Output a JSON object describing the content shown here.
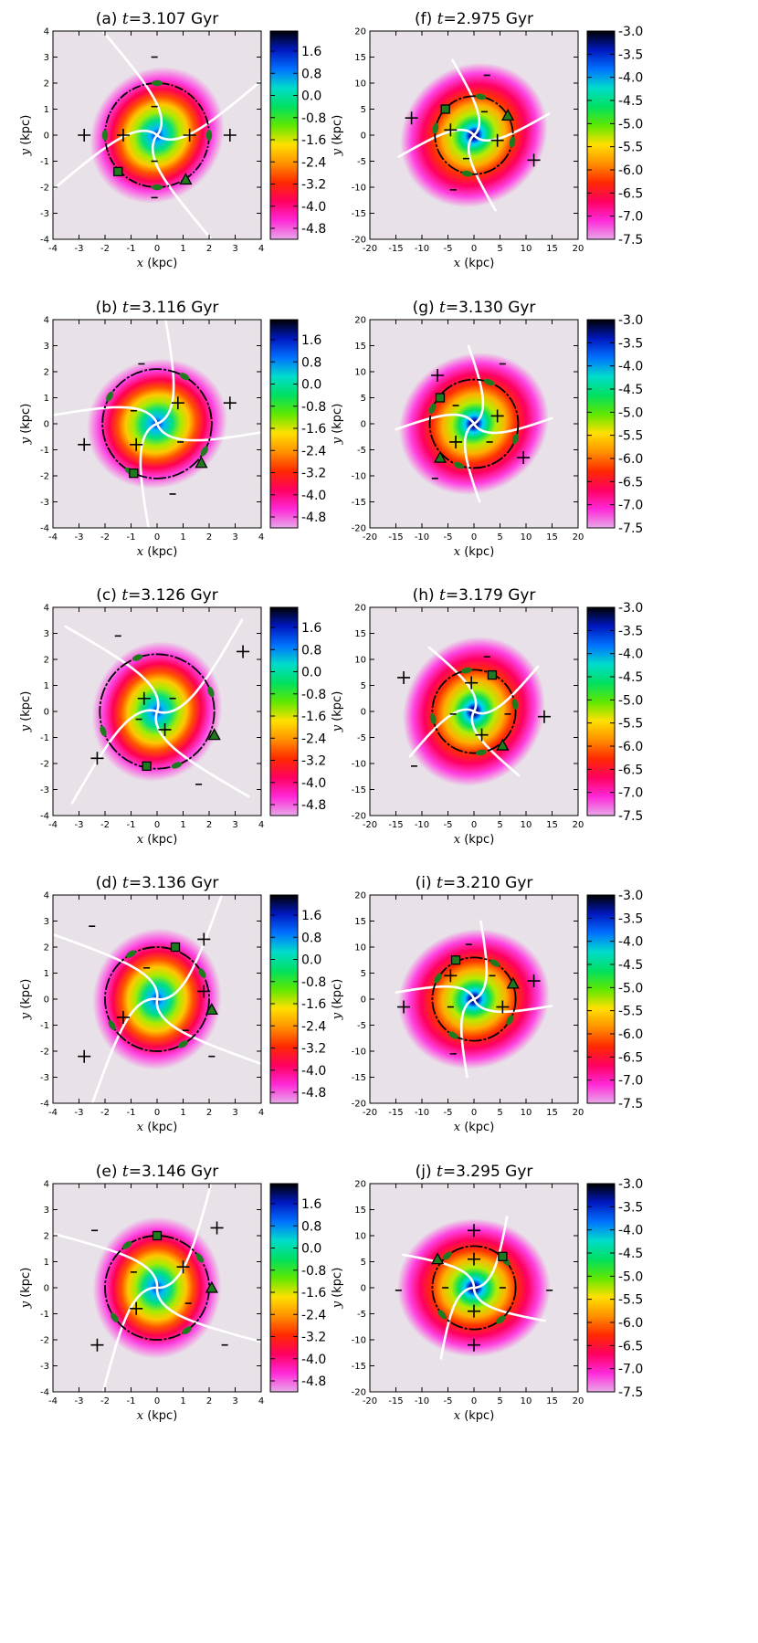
{
  "figure": {
    "xlabel_kpc": "x (kpc)",
    "ylabel_kpc": "y (kpc)",
    "title_suffix": " Gyr",
    "colors": {
      "map_outside": "#c4c4c4",
      "marker_green": "#1f7a1f",
      "marker_black": "#000000",
      "ridge_white": "#ffffff"
    },
    "colormap_stops": [
      "#000000",
      "#0018c0",
      "#0070ff",
      "#00dccc",
      "#00e060",
      "#60e800",
      "#ffe000",
      "#ff9000",
      "#ff2a00",
      "#ff0060",
      "#ff28d8",
      "#e8a8e8"
    ]
  },
  "chart_data": [
    {
      "type": "heatmap",
      "panel": "a",
      "label": "(a)",
      "time": "3.107",
      "xlim": [
        -4,
        4
      ],
      "ylim": [
        -4,
        4
      ],
      "xticks": [
        "-4",
        "-3",
        "-2",
        "-1",
        "0",
        "1",
        "2",
        "3",
        "4"
      ],
      "yticks": [
        "-4",
        "-3",
        "-2",
        "-1",
        "0",
        "1",
        "2",
        "3",
        "4"
      ],
      "cbar_ticks": [
        "1.6",
        "0.8",
        "0.0",
        "-0.8",
        "-1.6",
        "-2.4",
        "-3.2",
        "-4.0",
        "-4.8"
      ],
      "circle_r": 2.0,
      "rot": 50,
      "ridge_ext": 4.8,
      "plus": [
        [
          -2.8,
          0
        ],
        [
          -1.3,
          0
        ],
        [
          1.25,
          0
        ],
        [
          2.8,
          0
        ]
      ],
      "minus": [
        [
          -0.1,
          3.0
        ],
        [
          -0.1,
          1.1
        ],
        [
          -0.1,
          -1.0
        ],
        [
          -0.1,
          -2.4
        ]
      ],
      "square": [
        [
          -1.5,
          -1.4
        ]
      ],
      "triangle": [
        [
          1.1,
          -1.7
        ]
      ]
    },
    {
      "type": "heatmap",
      "panel": "b",
      "label": "(b)",
      "time": "3.116",
      "xlim": [
        -4,
        4
      ],
      "ylim": [
        -4,
        4
      ],
      "xticks": [
        "-4",
        "-3",
        "-2",
        "-1",
        "0",
        "1",
        "2",
        "3",
        "4"
      ],
      "yticks": [
        "-4",
        "-3",
        "-2",
        "-1",
        "0",
        "1",
        "2",
        "3",
        "4"
      ],
      "cbar_ticks": [
        "1.6",
        "0.8",
        "0.0",
        "-0.8",
        "-1.6",
        "-2.4",
        "-3.2",
        "-4.0",
        "-4.8"
      ],
      "circle_r": 2.1,
      "rot": 20,
      "ridge_ext": 4.8,
      "plus": [
        [
          -2.8,
          -0.8
        ],
        [
          -0.8,
          -0.8
        ],
        [
          0.8,
          0.8
        ],
        [
          2.8,
          0.8
        ]
      ],
      "minus": [
        [
          -0.9,
          0.5
        ],
        [
          0.9,
          -0.7
        ],
        [
          -0.6,
          2.3
        ],
        [
          0.6,
          -2.7
        ]
      ],
      "square": [
        [
          -0.9,
          -1.9
        ]
      ],
      "triangle": [
        [
          1.7,
          -1.5
        ]
      ]
    },
    {
      "type": "heatmap",
      "panel": "c",
      "label": "(c)",
      "time": "3.126",
      "xlim": [
        -4,
        4
      ],
      "ylim": [
        -4,
        4
      ],
      "xticks": [
        "-4",
        "-3",
        "-2",
        "-1",
        "0",
        "1",
        "2",
        "3",
        "4"
      ],
      "yticks": [
        "-4",
        "-3",
        "-2",
        "-1",
        "0",
        "1",
        "2",
        "3",
        "4"
      ],
      "cbar_ticks": [
        "1.6",
        "0.8",
        "0.0",
        "-0.8",
        "-1.6",
        "-2.4",
        "-3.2",
        "-4.0",
        "-4.8"
      ],
      "circle_r": 2.2,
      "rot": 70,
      "ridge_ext": 4.8,
      "plus": [
        [
          -2.3,
          -1.8
        ],
        [
          -0.5,
          0.5
        ],
        [
          0.3,
          -0.7
        ],
        [
          3.3,
          2.3
        ]
      ],
      "minus": [
        [
          -1.5,
          2.9
        ],
        [
          -0.7,
          -0.3
        ],
        [
          0.6,
          0.5
        ],
        [
          1.6,
          -2.8
        ]
      ],
      "square": [
        [
          -0.4,
          -2.1
        ]
      ],
      "triangle": [
        [
          2.2,
          -0.9
        ]
      ]
    },
    {
      "type": "heatmap",
      "panel": "d",
      "label": "(d)",
      "time": "3.136",
      "xlim": [
        -4,
        4
      ],
      "ylim": [
        -4,
        4
      ],
      "xticks": [
        "-4",
        "-3",
        "-2",
        "-1",
        "0",
        "1",
        "2",
        "3",
        "4"
      ],
      "yticks": [
        "-4",
        "-3",
        "-2",
        "-1",
        "0",
        "1",
        "2",
        "3",
        "4"
      ],
      "cbar_ticks": [
        "1.6",
        "0.8",
        "0.0",
        "-0.8",
        "-1.6",
        "-2.4",
        "-3.2",
        "-4.0",
        "-4.8"
      ],
      "circle_r": 2.0,
      "rot": 80,
      "ridge_ext": 4.8,
      "plus": [
        [
          -2.8,
          -2.2
        ],
        [
          -1.3,
          -0.7
        ],
        [
          1.8,
          0.3
        ],
        [
          1.8,
          2.3
        ]
      ],
      "minus": [
        [
          -2.5,
          2.8
        ],
        [
          -0.4,
          1.2
        ],
        [
          1.1,
          -1.2
        ],
        [
          2.1,
          -2.2
        ]
      ],
      "square": [
        [
          0.7,
          2.0
        ]
      ],
      "triangle": [
        [
          2.1,
          -0.4
        ]
      ]
    },
    {
      "type": "heatmap",
      "panel": "e",
      "label": "(e)",
      "time": "3.146",
      "xlim": [
        -4,
        4
      ],
      "ylim": [
        -4,
        4
      ],
      "xticks": [
        "-4",
        "-3",
        "-2",
        "-1",
        "0",
        "1",
        "2",
        "3",
        "4"
      ],
      "yticks": [
        "-4",
        "-3",
        "-2",
        "-1",
        "0",
        "1",
        "2",
        "3",
        "4"
      ],
      "cbar_ticks": [
        "1.6",
        "0.8",
        "0.0",
        "-0.8",
        "-1.6",
        "-2.4",
        "-3.2",
        "-4.0",
        "-4.8"
      ],
      "circle_r": 2.0,
      "rot": 85,
      "ridge_ext": 4.8,
      "plus": [
        [
          -2.3,
          -2.2
        ],
        [
          -0.8,
          -0.8
        ],
        [
          1.0,
          0.8
        ],
        [
          2.3,
          2.3
        ]
      ],
      "minus": [
        [
          -2.4,
          2.2
        ],
        [
          -0.9,
          0.6
        ],
        [
          1.2,
          -0.6
        ],
        [
          2.6,
          -2.2
        ]
      ],
      "square": [
        [
          0.0,
          2.0
        ]
      ],
      "triangle": [
        [
          2.1,
          0.0
        ]
      ]
    },
    {
      "type": "heatmap",
      "panel": "f",
      "label": "(f)",
      "time": "2.975",
      "xlim": [
        -20,
        20
      ],
      "ylim": [
        -20,
        20
      ],
      "xticks": [
        "-20",
        "-15",
        "-10",
        "-5",
        "0",
        "5",
        "10",
        "15",
        "20"
      ],
      "yticks": [
        "-20",
        "-15",
        "-10",
        "-5",
        "0",
        "5",
        "10",
        "15",
        "20"
      ],
      "cbar_ticks": [
        "-3.0",
        "-3.5",
        "-4.0",
        "-4.5",
        "-5.0",
        "-5.5",
        "-6.0",
        "-6.5",
        "-7.0",
        "-7.5"
      ],
      "circle_r": 7.5,
      "rot": 40,
      "ridge_ext": 15,
      "plus": [
        [
          -12,
          3.3
        ],
        [
          -4.5,
          1.0
        ],
        [
          4.5,
          -1.0
        ],
        [
          11.5,
          -4.8
        ]
      ],
      "minus": [
        [
          2.5,
          11.5
        ],
        [
          -1.5,
          -4.5
        ],
        [
          2.0,
          4.5
        ],
        [
          -4.0,
          -10.5
        ]
      ],
      "square": [
        [
          -5.5,
          5.0
        ]
      ],
      "triangle": [
        [
          6.5,
          3.8
        ]
      ]
    },
    {
      "type": "heatmap",
      "panel": "g",
      "label": "(g)",
      "time": "3.130",
      "xlim": [
        -20,
        20
      ],
      "ylim": [
        -20,
        20
      ],
      "xticks": [
        "-20",
        "-15",
        "-10",
        "-5",
        "0",
        "5",
        "10",
        "15",
        "20"
      ],
      "yticks": [
        "-20",
        "-15",
        "-10",
        "-5",
        "0",
        "5",
        "10",
        "15",
        "20"
      ],
      "cbar_ticks": [
        "-3.0",
        "-3.5",
        "-4.0",
        "-4.5",
        "-5.0",
        "-5.5",
        "-6.0",
        "-6.5",
        "-7.0",
        "-7.5"
      ],
      "circle_r": 8.5,
      "rot": 30,
      "ridge_ext": 15,
      "plus": [
        [
          -7.0,
          9.3
        ],
        [
          -3.5,
          -3.5
        ],
        [
          4.5,
          1.5
        ],
        [
          9.5,
          -6.5
        ]
      ],
      "minus": [
        [
          -3.5,
          3.5
        ],
        [
          3.0,
          -3.5
        ],
        [
          5.5,
          11.5
        ],
        [
          -7.5,
          -10.5
        ]
      ],
      "square": [
        [
          -6.5,
          5.0
        ]
      ],
      "triangle": [
        [
          -6.5,
          -6.5
        ]
      ]
    },
    {
      "type": "heatmap",
      "panel": "h",
      "label": "(h)",
      "time": "3.179",
      "xlim": [
        -20,
        20
      ],
      "ylim": [
        -20,
        20
      ],
      "xticks": [
        "-20",
        "-15",
        "-10",
        "-5",
        "0",
        "5",
        "10",
        "15",
        "20"
      ],
      "yticks": [
        "-20",
        "-15",
        "-10",
        "-5",
        "0",
        "5",
        "10",
        "15",
        "20"
      ],
      "cbar_ticks": [
        "-3.0",
        "-3.5",
        "-4.0",
        "-4.5",
        "-5.0",
        "-5.5",
        "-6.0",
        "-6.5",
        "-7.0",
        "-7.5"
      ],
      "circle_r": 8.0,
      "rot": 60,
      "ridge_ext": 15,
      "plus": [
        [
          -13.5,
          6.5
        ],
        [
          -0.5,
          5.5
        ],
        [
          1.5,
          -4.5
        ],
        [
          13.5,
          -1.0
        ]
      ],
      "minus": [
        [
          -4.0,
          -0.5
        ],
        [
          6.5,
          -0.5
        ],
        [
          2.5,
          10.5
        ],
        [
          -11.5,
          -10.5
        ]
      ],
      "square": [
        [
          3.5,
          7.0
        ]
      ],
      "triangle": [
        [
          5.5,
          -6.5
        ]
      ]
    },
    {
      "type": "heatmap",
      "panel": "i",
      "label": "(i)",
      "time": "3.210",
      "xlim": [
        -20,
        20
      ],
      "ylim": [
        -20,
        20
      ],
      "xticks": [
        "-20",
        "-15",
        "-10",
        "-5",
        "0",
        "5",
        "10",
        "15",
        "20"
      ],
      "yticks": [
        "-20",
        "-15",
        "-10",
        "-5",
        "0",
        "5",
        "10",
        "15",
        "20"
      ],
      "cbar_ticks": [
        "-3.0",
        "-3.5",
        "-4.0",
        "-4.5",
        "-5.0",
        "-5.5",
        "-6.0",
        "-6.5",
        "-7.0",
        "-7.5"
      ],
      "circle_r": 8.0,
      "rot": 20,
      "ridge_ext": 15,
      "plus": [
        [
          -13.5,
          -1.5
        ],
        [
          -4.5,
          4.5
        ],
        [
          5.5,
          -1.5
        ],
        [
          11.5,
          3.5
        ]
      ],
      "minus": [
        [
          -4.5,
          -1.5
        ],
        [
          3.5,
          4.5
        ],
        [
          -1.0,
          10.5
        ],
        [
          -4.0,
          -10.5
        ]
      ],
      "square": [
        [
          -3.5,
          7.5
        ]
      ],
      "triangle": [
        [
          7.5,
          3.0
        ]
      ]
    },
    {
      "type": "heatmap",
      "panel": "j",
      "label": "(j)",
      "time": "3.295",
      "xlim": [
        -20,
        20
      ],
      "ylim": [
        -20,
        20
      ],
      "xticks": [
        "-20",
        "-15",
        "-10",
        "-5",
        "0",
        "5",
        "10",
        "15",
        "20"
      ],
      "yticks": [
        "-20",
        "-15",
        "-10",
        "-5",
        "0",
        "5",
        "10",
        "15",
        "20"
      ],
      "cbar_ticks": [
        "-3.0",
        "-3.5",
        "-4.0",
        "-4.5",
        "-5.0",
        "-5.5",
        "-6.0",
        "-6.5",
        "-7.0",
        "-7.5"
      ],
      "circle_r": 8.0,
      "rot": 0,
      "ridge_ext": 15,
      "plus": [
        [
          0,
          11.0
        ],
        [
          0,
          5.5
        ],
        [
          0,
          -4.5
        ],
        [
          0,
          -11.0
        ]
      ],
      "minus": [
        [
          -5.5,
          0
        ],
        [
          5.5,
          0
        ],
        [
          -14.5,
          -0.5
        ],
        [
          14.5,
          -0.5
        ]
      ],
      "square": [
        [
          5.5,
          6.0
        ]
      ],
      "triangle": [
        [
          -7.0,
          5.5
        ]
      ]
    }
  ]
}
